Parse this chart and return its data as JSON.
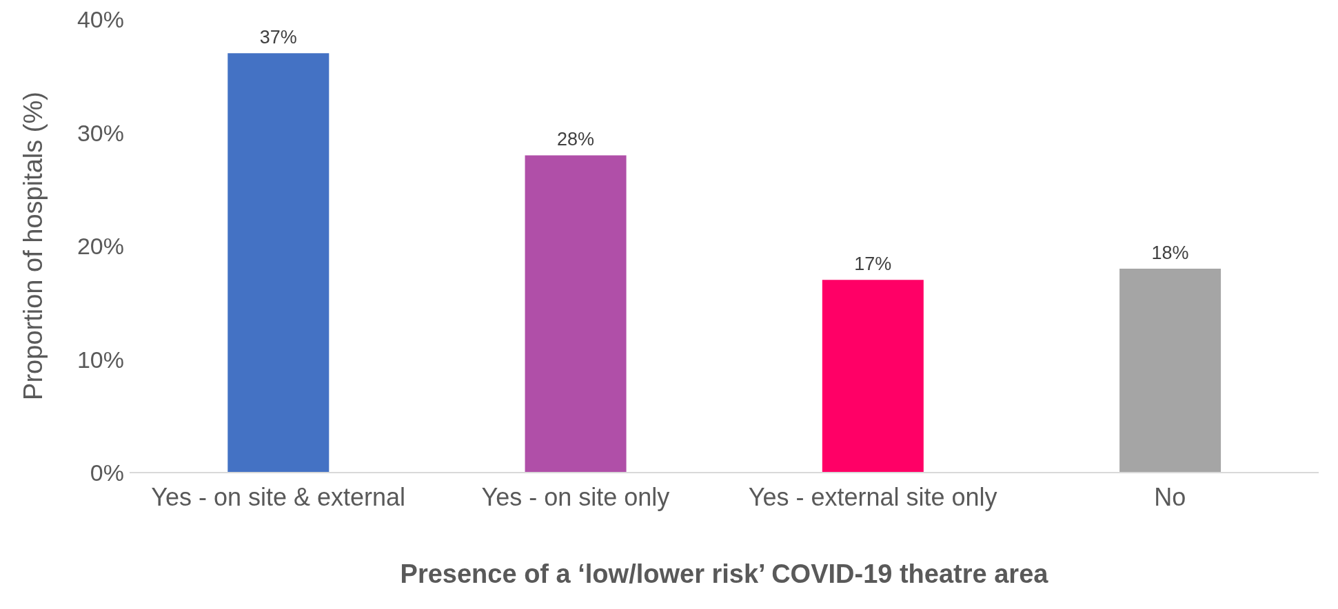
{
  "chart_data": {
    "type": "bar",
    "xlabel": "Presence of a ‘low/lower risk’ COVID-19 theatre area",
    "ylabel": "Proportion of hospitals (%)",
    "categories": [
      "Yes - on site & external",
      "Yes - on site only",
      "Yes - external site only",
      "No"
    ],
    "values": [
      37,
      28,
      17,
      18
    ],
    "colors": [
      "#4472c4",
      "#b04fa8",
      "#ff0066",
      "#a5a5a5"
    ],
    "value_labels": [
      "37%",
      "28%",
      "17%",
      "18%"
    ],
    "ylim": [
      0,
      40
    ],
    "yticks": [
      {
        "value": 0,
        "label": "0%"
      },
      {
        "value": 10,
        "label": "10%"
      },
      {
        "value": 20,
        "label": "20%"
      },
      {
        "value": 30,
        "label": "30%"
      },
      {
        "value": 40,
        "label": "40%"
      }
    ]
  }
}
